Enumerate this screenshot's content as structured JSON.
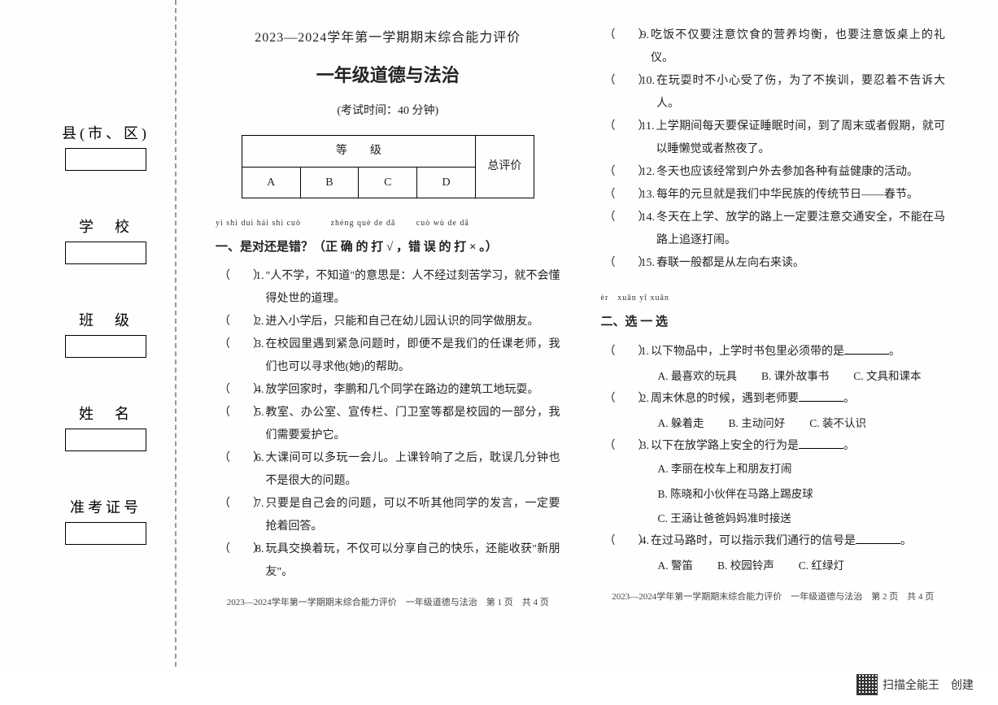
{
  "info_fields": [
    {
      "label": "县(市、区)"
    },
    {
      "label": "学　校"
    },
    {
      "label": "班　级"
    },
    {
      "label": "姓　名"
    },
    {
      "label": "准考证号"
    }
  ],
  "header": {
    "line1": "2023—2024学年第一学期期末综合能力评价",
    "line2": "一年级道德与法治",
    "line3": "(考试时间：40 分钟)"
  },
  "grade_table": {
    "row1_col_header": "等　　级",
    "row1_last": "总评价",
    "cells": [
      "A",
      "B",
      "C",
      "D"
    ]
  },
  "section1": {
    "pinyin1": "yì  shì duì hái shì cuò",
    "pinyin2": "zhèng què de dǎ",
    "pinyin3": "cuò wù de dǎ",
    "title": "一、是对还是错？（正 确 的 打 √ ，错 误 的 打 × 。）",
    "items": [
      {
        "n": "1.",
        "t": "\"人不学，不知道\"的意思是：人不经过刻苦学习，就不会懂得处世的道理。"
      },
      {
        "n": "2.",
        "t": "进入小学后，只能和自己在幼儿园认识的同学做朋友。"
      },
      {
        "n": "3.",
        "t": "在校园里遇到紧急问题时，即便不是我们的任课老师，我们也可以寻求他(她)的帮助。"
      },
      {
        "n": "4.",
        "t": "放学回家时，李鹏和几个同学在路边的建筑工地玩耍。"
      },
      {
        "n": "5.",
        "t": "教室、办公室、宣传栏、门卫室等都是校园的一部分，我们需要爱护它。"
      },
      {
        "n": "6.",
        "t": "大课间可以多玩一会儿。上课铃响了之后，耽误几分钟也不是很大的问题。"
      },
      {
        "n": "7.",
        "t": "只要是自己会的问题，可以不听其他同学的发言，一定要抢着回答。"
      },
      {
        "n": "8.",
        "t": "玩具交换着玩，不仅可以分享自己的快乐，还能收获\"新朋友\"。"
      }
    ]
  },
  "section1_right": [
    {
      "n": "9.",
      "t": "吃饭不仅要注意饮食的营养均衡，也要注意饭桌上的礼仪。"
    },
    {
      "n": "10.",
      "t": "在玩耍时不小心受了伤，为了不挨训，要忍着不告诉大人。"
    },
    {
      "n": "11.",
      "t": "上学期间每天要保证睡眠时间，到了周末或者假期，就可以睡懒觉或者熬夜了。"
    },
    {
      "n": "12.",
      "t": "冬天也应该经常到户外去参加各种有益健康的活动。"
    },
    {
      "n": "13.",
      "t": "每年的元旦就是我们中华民族的传统节日——春节。"
    },
    {
      "n": "14.",
      "t": "冬天在上学、放学的路上一定要注意交通安全，不能在马路上追逐打闹。"
    },
    {
      "n": "15.",
      "t": "春联一般都是从左向右来读。"
    }
  ],
  "section2": {
    "pinyin": "èr　xuǎn yī xuǎn",
    "title": "二、选 一 选",
    "items": [
      {
        "n": "1.",
        "t": "以下物品中，上学时书包里必须带的是",
        "choices_row": [
          "A. 最喜欢的玩具",
          "B. 课外故事书",
          "C. 文具和课本"
        ]
      },
      {
        "n": "2.",
        "t": "周末休息的时候，遇到老师要",
        "choices_row": [
          "A. 躲着走",
          "B. 主动问好",
          "C. 装不认识"
        ]
      },
      {
        "n": "3.",
        "t": "以下在放学路上安全的行为是",
        "choices_col": [
          "A. 李丽在校车上和朋友打闹",
          "B. 陈晓和小伙伴在马路上踢皮球",
          "C. 王涵让爸爸妈妈准时接送"
        ]
      },
      {
        "n": "4.",
        "t": "在过马路时，可以指示我们通行的信号是",
        "choices_row": [
          "A. 警笛",
          "B. 校园铃声",
          "C. 红绿灯"
        ]
      }
    ]
  },
  "footer_left": "2023—2024学年第一学期期末综合能力评价　一年级道德与法治　第 1 页　共 4 页",
  "footer_right": "2023—2024学年第一学期期末综合能力评价　一年级道德与法治　第 2 页　共 4 页",
  "watermark": "扫描全能王　创建"
}
